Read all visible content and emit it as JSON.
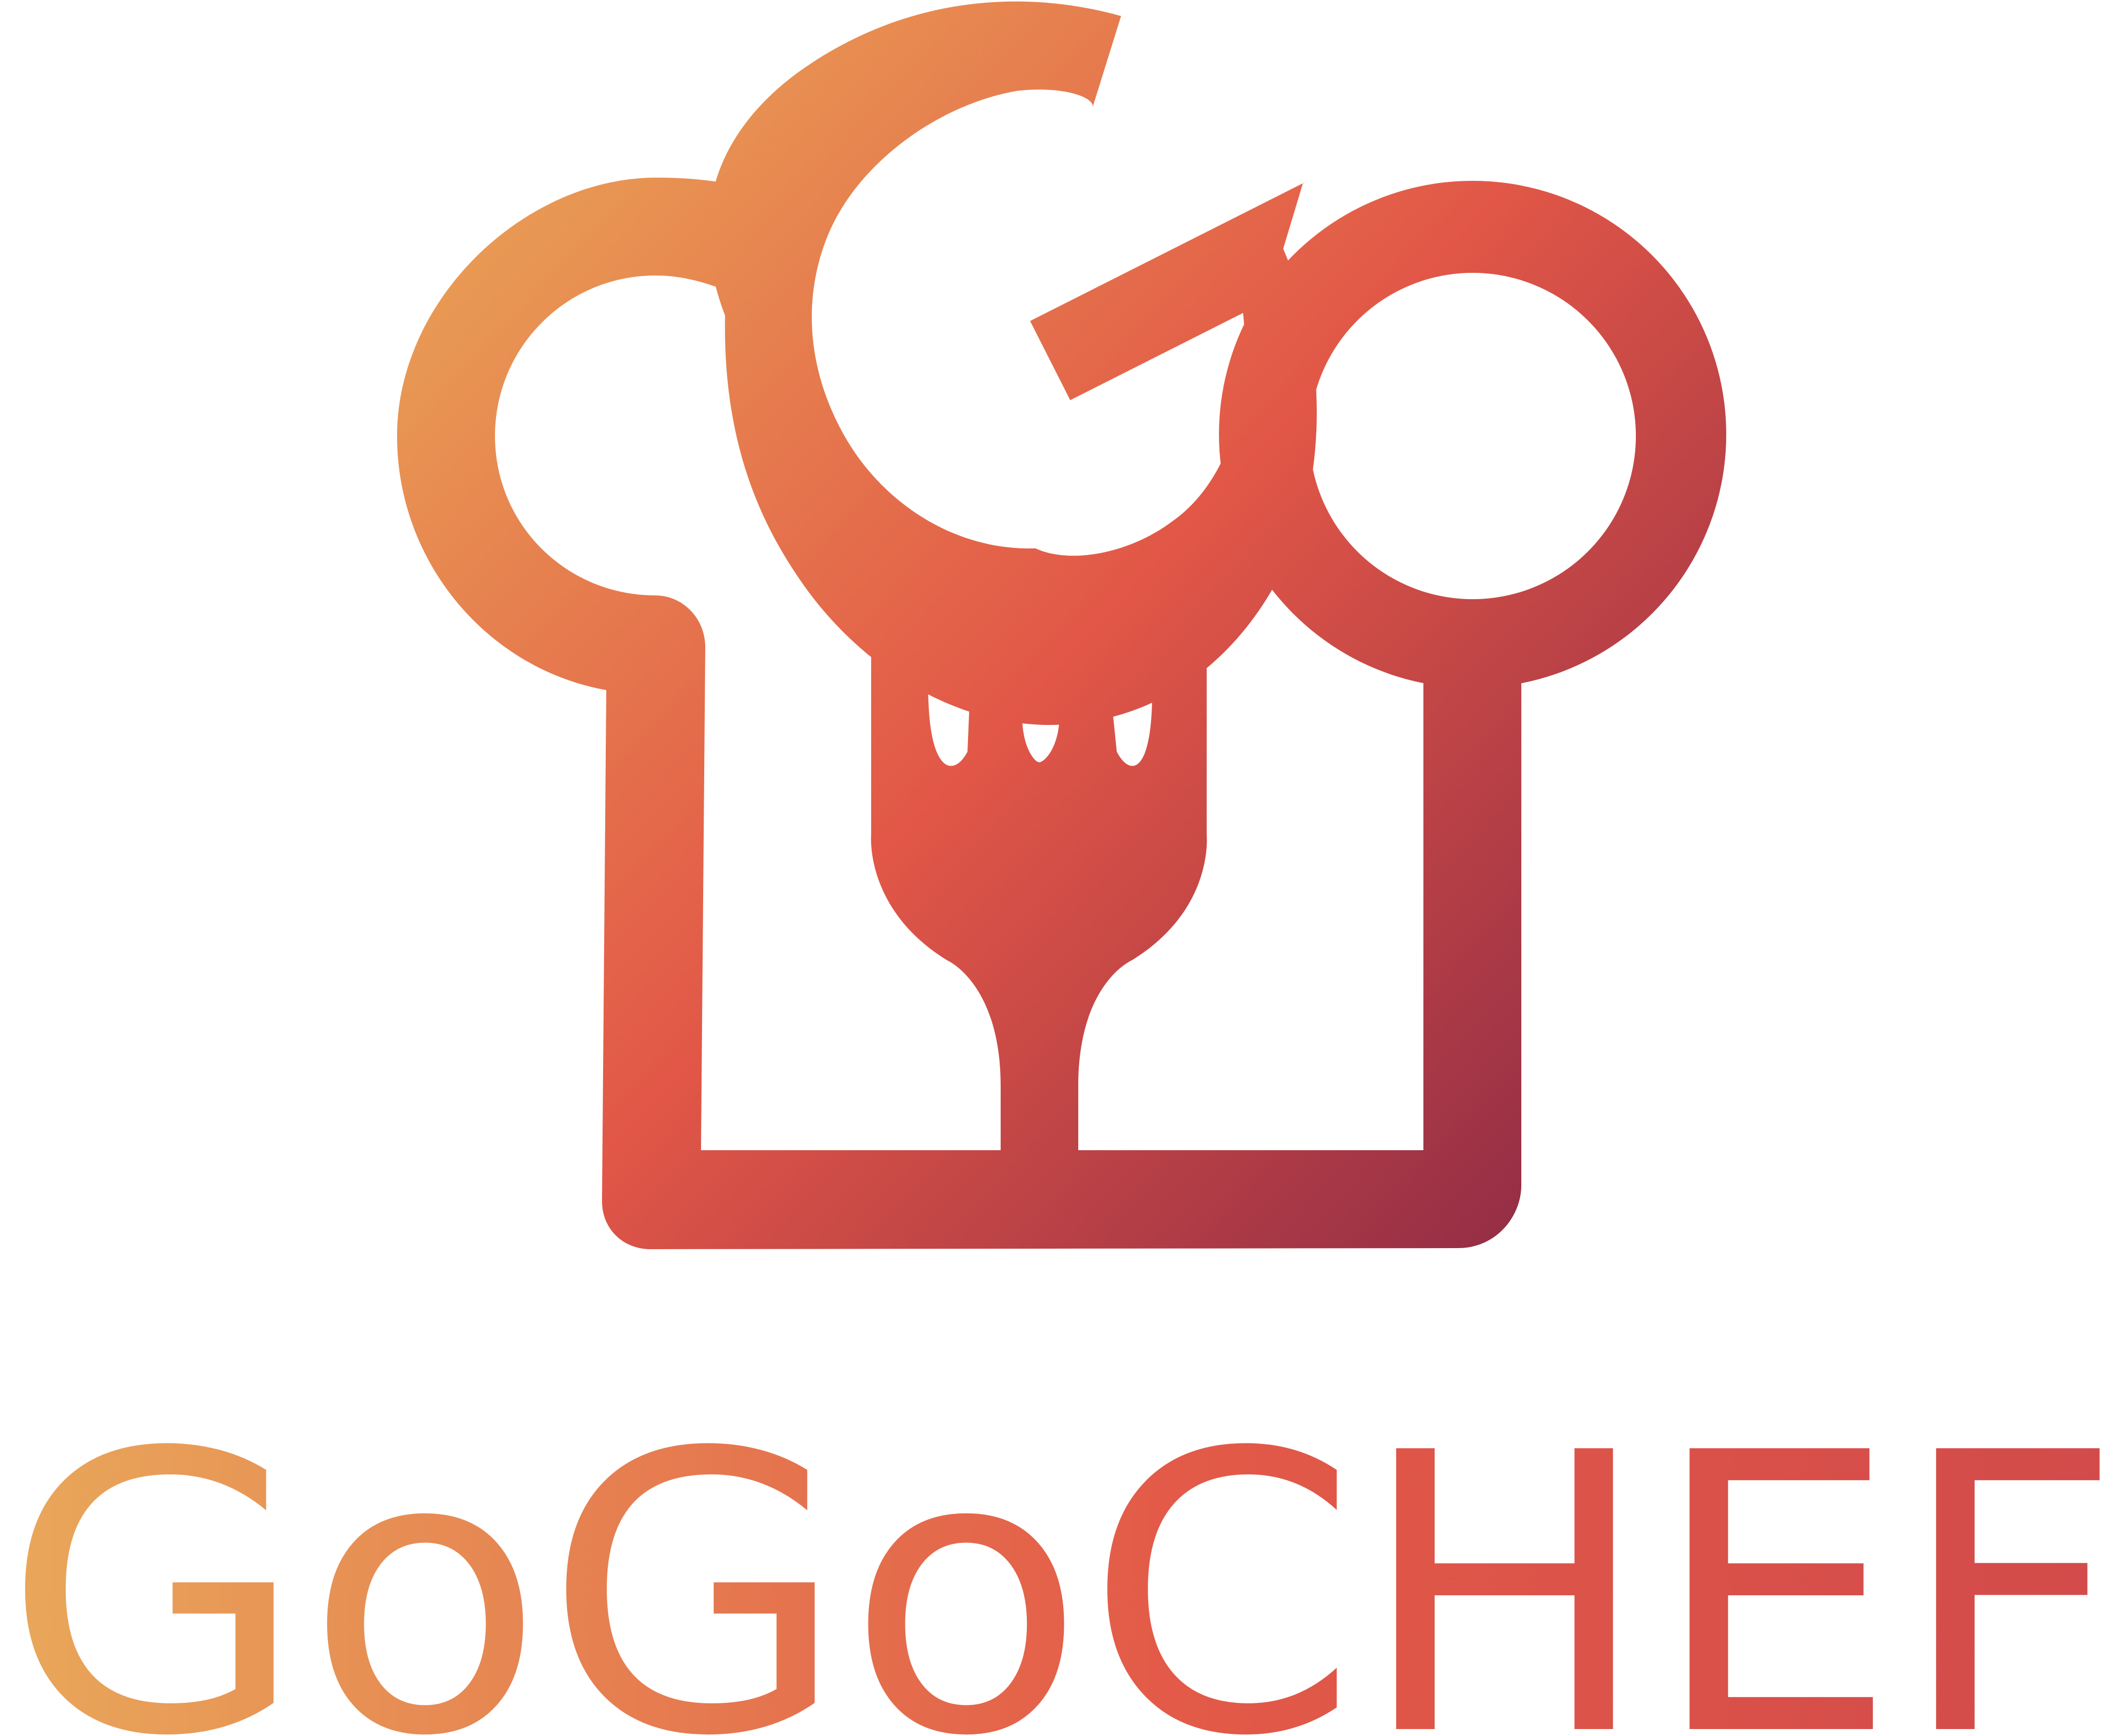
{
  "brand": {
    "name": "GoGoCHEF",
    "gradient": {
      "start": "#EAA556",
      "mid": "#E25747",
      "end": "#8A2845"
    },
    "wordmark_gradient": {
      "start": "#E9A85A",
      "mid": "#E35A48",
      "end": "#D24A4A"
    },
    "icons": {
      "mark": "chef-hat-fork-icon"
    }
  }
}
